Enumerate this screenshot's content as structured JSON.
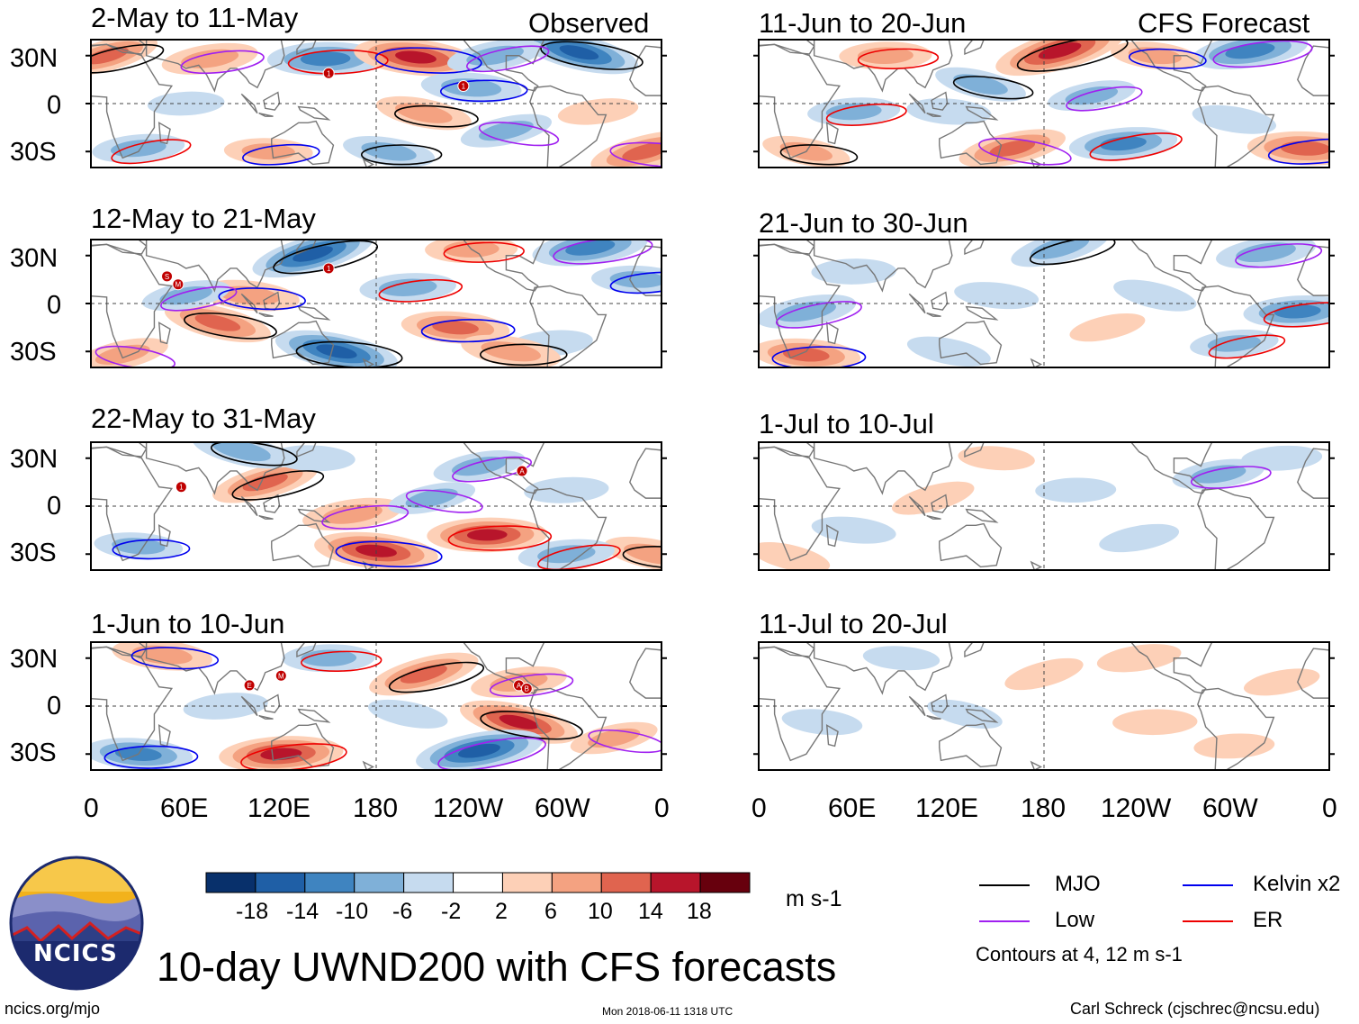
{
  "figure": {
    "main_title": "10-day UWND200 with CFS forecasts",
    "left_column_label": "Observed",
    "right_column_label": "CFS Forecast",
    "units": "m s-1",
    "contour_note": "Contours at 4, 12 m s-1",
    "footer_left": "ncics.org/mjo",
    "footer_center": "Mon 2018-06-11 1318 UTC",
    "footer_right": "Carl Schreck (cjschrec@ncsu.edu)",
    "logo_text": "NCICS"
  },
  "colors": {
    "neg": [
      "#08306b",
      "#1f5fa6",
      "#3f84c0",
      "#7fb0d8",
      "#c6dbef"
    ],
    "neutral": "#ffffff",
    "pos": [
      "#fdd0b7",
      "#f4a281",
      "#e0644f",
      "#b8152b",
      "#67000d"
    ],
    "land": "#777777",
    "mjo": "#000000",
    "kelvin": "#0000ee",
    "low": "#a020f0",
    "er": "#ee0000",
    "tc_marker": "#c00000"
  },
  "chart_data": {
    "type": "heatmap",
    "variable": "200-hPa zonal wind anomaly (UWND200), 10-day means",
    "x_tick_labels": [
      "0",
      "60E",
      "120E",
      "180",
      "120W",
      "60W",
      "0"
    ],
    "x_range_deg_east": [
      0,
      360
    ],
    "y_tick_labels": [
      "30N",
      "0",
      "30S"
    ],
    "y_range_deg": [
      -40,
      40
    ],
    "colorbar": {
      "tick_labels": [
        "-18",
        "-14",
        "-10",
        "-6",
        "-2",
        "2",
        "6",
        "10",
        "14",
        "18"
      ],
      "levels": [
        -18,
        -14,
        -10,
        -6,
        -2,
        2,
        6,
        10,
        14,
        18
      ]
    },
    "legend": [
      {
        "name": "MJO",
        "color": "#000000"
      },
      {
        "name": "Kelvin x2",
        "color": "#0000ee"
      },
      {
        "name": "Low",
        "color": "#a020f0"
      },
      {
        "name": "ER",
        "color": "#ee0000"
      }
    ],
    "panels": [
      {
        "title": "2-May to 11-May",
        "kind": "observed",
        "col": 0,
        "row": 0,
        "markers": [
          {
            "lon": 150,
            "lat": 19,
            "code": "1"
          },
          {
            "lon": 235,
            "lat": 11,
            "code": "1"
          }
        ],
        "anom": [
          {
            "lon": 10,
            "lat": 30,
            "v": 11
          },
          {
            "lon": 75,
            "lat": 28,
            "v": 9
          },
          {
            "lon": 148,
            "lat": 28,
            "v": -14
          },
          {
            "lon": 205,
            "lat": 29,
            "v": 16
          },
          {
            "lon": 308,
            "lat": 32,
            "v": -15
          },
          {
            "lon": 255,
            "lat": 30,
            "v": -9
          },
          {
            "lon": 60,
            "lat": 0,
            "v": -4
          },
          {
            "lon": 240,
            "lat": 10,
            "v": -10
          },
          {
            "lon": 210,
            "lat": -6,
            "v": 9
          },
          {
            "lon": 262,
            "lat": -17,
            "v": -8
          },
          {
            "lon": 30,
            "lat": -28,
            "v": -8
          },
          {
            "lon": 112,
            "lat": -30,
            "v": 7
          },
          {
            "lon": 188,
            "lat": -30,
            "v": -8
          },
          {
            "lon": 350,
            "lat": -30,
            "v": 13
          },
          {
            "lon": 320,
            "lat": -5,
            "v": 5
          }
        ]
      },
      {
        "title": "12-May to 21-May",
        "kind": "observed",
        "col": 0,
        "row": 1,
        "markers": [
          {
            "lon": 48,
            "lat": 17,
            "code": "S"
          },
          {
            "lon": 55,
            "lat": 12,
            "code": "M"
          },
          {
            "lon": 150,
            "lat": 22,
            "code": "1"
          }
        ],
        "anom": [
          {
            "lon": 140,
            "lat": 31,
            "v": -16
          },
          {
            "lon": 315,
            "lat": 35,
            "v": -14
          },
          {
            "lon": 240,
            "lat": 34,
            "v": 8
          },
          {
            "lon": 100,
            "lat": 5,
            "v": 10
          },
          {
            "lon": 80,
            "lat": -12,
            "v": 12
          },
          {
            "lon": 60,
            "lat": 5,
            "v": -7
          },
          {
            "lon": 200,
            "lat": 10,
            "v": -9
          },
          {
            "lon": 230,
            "lat": -15,
            "v": 12
          },
          {
            "lon": 155,
            "lat": -30,
            "v": -16
          },
          {
            "lon": 20,
            "lat": -32,
            "v": 8
          },
          {
            "lon": 290,
            "lat": -25,
            "v": -6
          },
          {
            "lon": 345,
            "lat": 15,
            "v": -8
          },
          {
            "lon": 265,
            "lat": -30,
            "v": 10
          }
        ]
      },
      {
        "title": "22-May to 31-May",
        "kind": "observed",
        "col": 0,
        "row": 2,
        "markers": [
          {
            "lon": 57,
            "lat": 12,
            "code": "1"
          },
          {
            "lon": 272,
            "lat": 22,
            "code": "A"
          }
        ],
        "anom": [
          {
            "lon": 110,
            "lat": 15,
            "v": 12
          },
          {
            "lon": 165,
            "lat": -5,
            "v": 10
          },
          {
            "lon": 250,
            "lat": -18,
            "v": 15
          },
          {
            "lon": 180,
            "lat": -28,
            "v": 16
          },
          {
            "lon": 95,
            "lat": 35,
            "v": -10
          },
          {
            "lon": 245,
            "lat": 25,
            "v": -8
          },
          {
            "lon": 300,
            "lat": 10,
            "v": -6
          },
          {
            "lon": 30,
            "lat": -25,
            "v": -7
          },
          {
            "lon": 355,
            "lat": -30,
            "v": 10
          },
          {
            "lon": 215,
            "lat": 5,
            "v": -7
          },
          {
            "lon": 300,
            "lat": -30,
            "v": -9
          },
          {
            "lon": 140,
            "lat": 30,
            "v": -6
          }
        ]
      },
      {
        "title": "1-Jun to 10-Jun",
        "kind": "observed",
        "col": 0,
        "row": 3,
        "markers": [
          {
            "lon": 100,
            "lat": 13,
            "code": "E"
          },
          {
            "lon": 120,
            "lat": 19,
            "code": "M"
          },
          {
            "lon": 270,
            "lat": 13,
            "code": "A"
          },
          {
            "lon": 275,
            "lat": 11,
            "code": "B"
          }
        ],
        "anom": [
          {
            "lon": 210,
            "lat": 20,
            "v": 13
          },
          {
            "lon": 270,
            "lat": 15,
            "v": 9
          },
          {
            "lon": 150,
            "lat": 30,
            "v": -8
          },
          {
            "lon": 45,
            "lat": 32,
            "v": 10
          },
          {
            "lon": 270,
            "lat": -10,
            "v": 15
          },
          {
            "lon": 245,
            "lat": -28,
            "v": -17
          },
          {
            "lon": 120,
            "lat": -30,
            "v": 16
          },
          {
            "lon": 30,
            "lat": -30,
            "v": -12
          },
          {
            "lon": 200,
            "lat": -5,
            "v": -5
          },
          {
            "lon": 330,
            "lat": -20,
            "v": 7
          },
          {
            "lon": 85,
            "lat": 0,
            "v": -6
          }
        ]
      },
      {
        "title": "11-Jun to 20-Jun",
        "kind": "forecast",
        "col": 1,
        "row": 0,
        "markers": [],
        "anom": [
          {
            "lon": 190,
            "lat": 33,
            "v": 18
          },
          {
            "lon": 310,
            "lat": 33,
            "v": -14
          },
          {
            "lon": 80,
            "lat": 30,
            "v": 8
          },
          {
            "lon": 250,
            "lat": 30,
            "v": 7
          },
          {
            "lon": 140,
            "lat": 12,
            "v": -8
          },
          {
            "lon": 210,
            "lat": 5,
            "v": -7
          },
          {
            "lon": 60,
            "lat": -5,
            "v": -8
          },
          {
            "lon": 120,
            "lat": -5,
            "v": -6
          },
          {
            "lon": 30,
            "lat": -30,
            "v": 7
          },
          {
            "lon": 160,
            "lat": -28,
            "v": 12
          },
          {
            "lon": 230,
            "lat": -25,
            "v": -12
          },
          {
            "lon": 345,
            "lat": -28,
            "v": 14
          },
          {
            "lon": 300,
            "lat": -10,
            "v": -6
          }
        ]
      },
      {
        "title": "21-Jun to 30-Jun",
        "kind": "forecast",
        "col": 1,
        "row": 1,
        "markers": [],
        "anom": [
          {
            "lon": 190,
            "lat": 35,
            "v": -10
          },
          {
            "lon": 320,
            "lat": 32,
            "v": -10
          },
          {
            "lon": 60,
            "lat": 20,
            "v": -6
          },
          {
            "lon": 150,
            "lat": 5,
            "v": -6
          },
          {
            "lon": 250,
            "lat": 5,
            "v": -6
          },
          {
            "lon": 30,
            "lat": -5,
            "v": -10
          },
          {
            "lon": 340,
            "lat": -5,
            "v": -12
          },
          {
            "lon": 30,
            "lat": -32,
            "v": 12
          },
          {
            "lon": 120,
            "lat": -30,
            "v": -6
          },
          {
            "lon": 220,
            "lat": -15,
            "v": 4
          },
          {
            "lon": 300,
            "lat": -25,
            "v": -7
          }
        ]
      },
      {
        "title": "1-Jul to 10-Jul",
        "kind": "forecast",
        "col": 1,
        "row": 2,
        "markers": [],
        "anom": [
          {
            "lon": 110,
            "lat": 5,
            "v": 6
          },
          {
            "lon": 290,
            "lat": 20,
            "v": -8
          },
          {
            "lon": 200,
            "lat": 10,
            "v": -5
          },
          {
            "lon": 60,
            "lat": -15,
            "v": -6
          },
          {
            "lon": 20,
            "lat": -32,
            "v": 5
          },
          {
            "lon": 240,
            "lat": -20,
            "v": -5
          },
          {
            "lon": 330,
            "lat": 30,
            "v": -5
          },
          {
            "lon": 150,
            "lat": 30,
            "v": 4
          }
        ]
      },
      {
        "title": "11-Jul to 20-Jul",
        "kind": "forecast",
        "col": 1,
        "row": 3,
        "markers": [],
        "anom": [
          {
            "lon": 180,
            "lat": 20,
            "v": 5
          },
          {
            "lon": 240,
            "lat": 30,
            "v": 6
          },
          {
            "lon": 250,
            "lat": -10,
            "v": 6
          },
          {
            "lon": 40,
            "lat": -10,
            "v": -5
          },
          {
            "lon": 130,
            "lat": -5,
            "v": -4
          },
          {
            "lon": 330,
            "lat": 15,
            "v": 4
          },
          {
            "lon": 300,
            "lat": -25,
            "v": 5
          },
          {
            "lon": 90,
            "lat": 30,
            "v": -4
          }
        ]
      }
    ]
  }
}
